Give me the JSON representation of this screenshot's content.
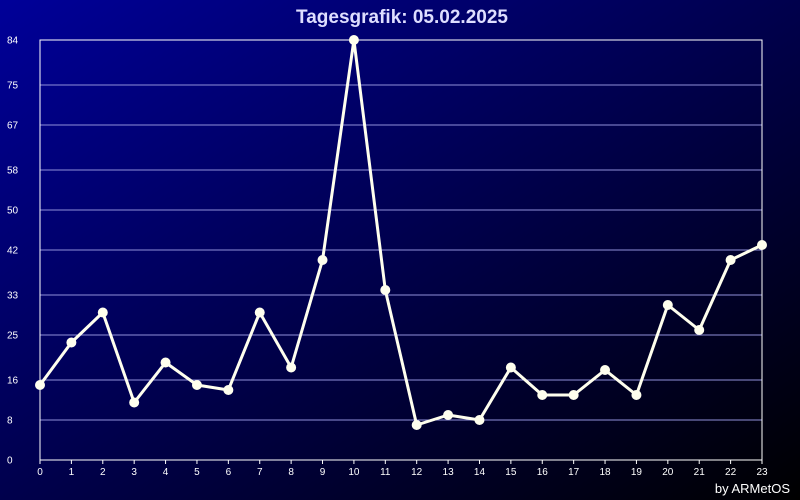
{
  "chart_data": {
    "type": "line",
    "title": "Tagesgrafik: 05.02.2025",
    "credit": "by ARMetOS",
    "x": [
      0,
      1,
      2,
      3,
      4,
      5,
      6,
      7,
      8,
      9,
      10,
      11,
      12,
      13,
      14,
      15,
      16,
      17,
      18,
      19,
      20,
      21,
      22,
      23
    ],
    "x_tick_labels": [
      "0",
      "1",
      "2",
      "3",
      "4",
      "5",
      "6",
      "7",
      "8",
      "9",
      "10",
      "11",
      "12",
      "13",
      "14",
      "15",
      "16",
      "17",
      "18",
      "19",
      "20",
      "21",
      "22",
      "23"
    ],
    "y_ticks": [
      0,
      8,
      16,
      25,
      33,
      42,
      50,
      58,
      67,
      75,
      84
    ],
    "y_tick_labels": [
      "0",
      "8",
      "16",
      "25",
      "33",
      "42",
      "50",
      "58",
      "67",
      "75",
      "84"
    ],
    "ylim": [
      0,
      84
    ],
    "grid": true,
    "series": [
      {
        "values": [
          15,
          23.5,
          29.5,
          11.5,
          19.5,
          15,
          14,
          29.5,
          18.5,
          40,
          84,
          34,
          7,
          9,
          8,
          18.5,
          13,
          13,
          18,
          13,
          31,
          26,
          40,
          43
        ],
        "color": "#ffffee"
      }
    ],
    "colors": {
      "background_start": "#000099",
      "background_end": "#000000",
      "axis": "#ffffff",
      "grid": "#8f8fd9",
      "text": "#ffffff",
      "title": "#dedeff"
    }
  }
}
